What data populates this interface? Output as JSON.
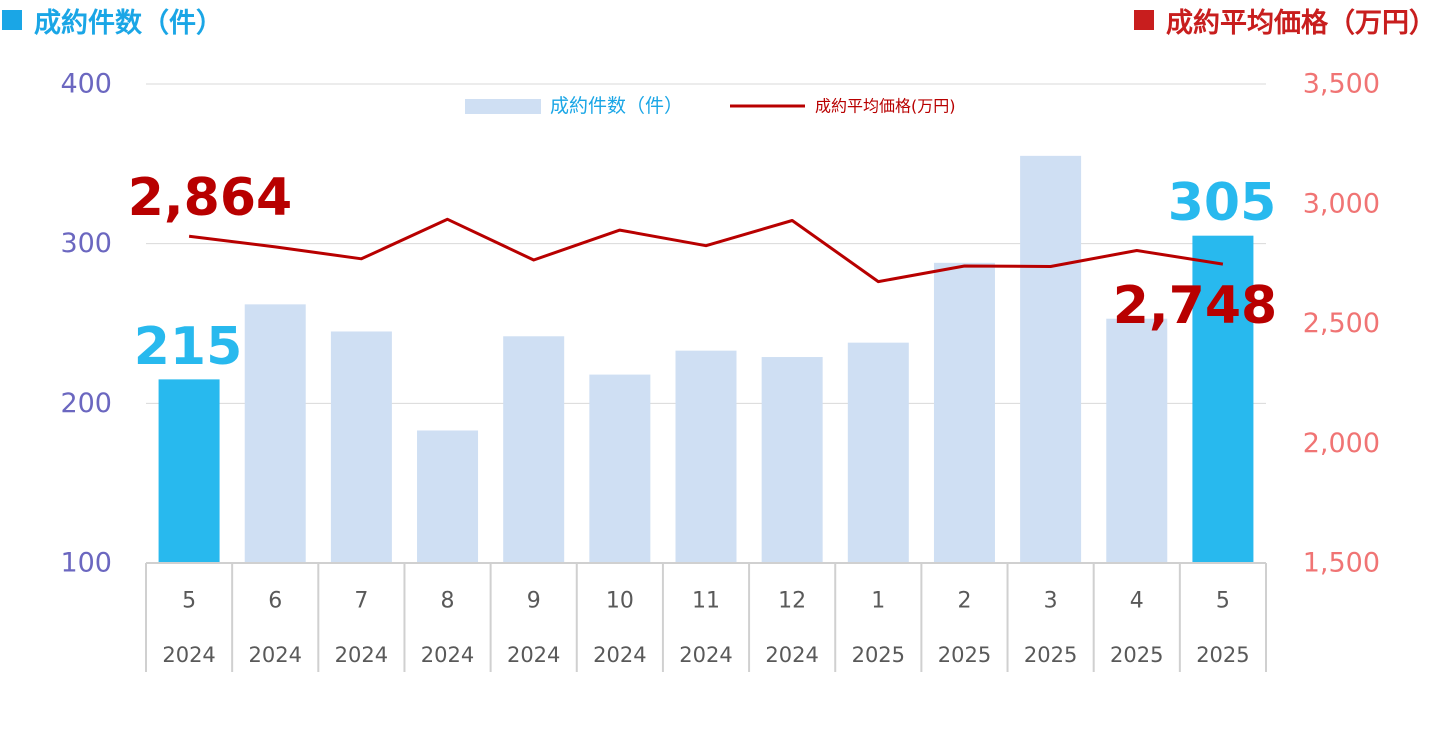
{
  "headers": {
    "left": {
      "label": "成約件数（件）",
      "color": "#1aa6e6"
    },
    "right": {
      "label": "成約平均価格（万円）",
      "color": "#c81e1e"
    }
  },
  "colors": {
    "bar": "#cfdff3",
    "bar_highlight": "#28b9ee",
    "line": "#b80000",
    "left_axis": "#6b67c0",
    "right_axis": "#f07474",
    "grid": "#d9d9d9",
    "table_border": "#d0d0d0",
    "category_text": "#595959"
  },
  "chart_data": {
    "type": "bar+line",
    "categories": [
      {
        "month": "5",
        "year": "2024"
      },
      {
        "month": "6",
        "year": "2024"
      },
      {
        "month": "7",
        "year": "2024"
      },
      {
        "month": "8",
        "year": "2024"
      },
      {
        "month": "9",
        "year": "2024"
      },
      {
        "month": "10",
        "year": "2024"
      },
      {
        "month": "11",
        "year": "2024"
      },
      {
        "month": "12",
        "year": "2024"
      },
      {
        "month": "1",
        "year": "2025"
      },
      {
        "month": "2",
        "year": "2025"
      },
      {
        "month": "3",
        "year": "2025"
      },
      {
        "month": "4",
        "year": "2025"
      },
      {
        "month": "5",
        "year": "2025"
      }
    ],
    "bar_series": {
      "name": "成約件数（件）",
      "axis": "left",
      "values": [
        215,
        262,
        245,
        183,
        242,
        218,
        233,
        229,
        238,
        288,
        355,
        253,
        305
      ],
      "highlight_indices": [
        0,
        12
      ]
    },
    "line_series": {
      "name": "成約平均価格(万円)",
      "axis": "right",
      "values": [
        2864,
        2820,
        2770,
        2935,
        2765,
        2890,
        2825,
        2930,
        2675,
        2740,
        2738,
        2805,
        2748
      ]
    },
    "left_axis": {
      "min": 100,
      "max": 400,
      "ticks": [
        100,
        200,
        300,
        400
      ],
      "tick_labels": [
        "100",
        "200",
        "300",
        "400"
      ]
    },
    "right_axis": {
      "min": 1500,
      "max": 3500,
      "ticks": [
        1500,
        2000,
        2500,
        3000,
        3500
      ],
      "tick_labels": [
        "1,500",
        "2,000",
        "2,500",
        "3,000",
        "3,500"
      ]
    },
    "legend": {
      "position": "top-center",
      "entries": [
        "成約件数（件）",
        "成約平均価格(万円)"
      ]
    },
    "annotations": [
      {
        "text": "2,864",
        "series": "line",
        "index": 0
      },
      {
        "text": "2,748",
        "series": "line",
        "index": 12
      },
      {
        "text": "215",
        "series": "bar",
        "index": 0
      },
      {
        "text": "305",
        "series": "bar",
        "index": 12
      }
    ],
    "grid": true
  }
}
